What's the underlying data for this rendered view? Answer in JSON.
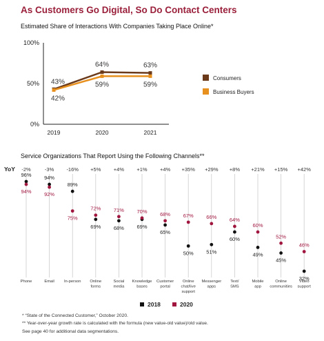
{
  "header": {
    "title": "As Customers Go Digital, So Do Contact Centers",
    "chart1_title": "Estimated Share of Interactions With Companies Taking Place Online*",
    "chart2_title": "Service Organizations That Report Using the Following Channels**"
  },
  "footnotes": {
    "note1": "* “State of the Connected Customer,” October 2020.",
    "note2": "** Year-over-year growth rate is calculated with the formula (new value-old value)/old value.",
    "note3": "See page 40 for additional data segmentations."
  },
  "chart_data": [
    {
      "type": "line",
      "title": "Estimated Share of Interactions With Companies Taking Place Online*",
      "x": [
        "2019",
        "2020",
        "2021"
      ],
      "ylim": [
        0,
        100
      ],
      "y_ticks": [
        "0%",
        "50%",
        "100%"
      ],
      "legend_position": "right",
      "series": [
        {
          "name": "Consumers",
          "values": [
            43,
            64,
            63
          ],
          "labels": [
            "43%",
            "64%",
            "63%"
          ],
          "color": "#6b3a1a"
        },
        {
          "name": "Business Buyers",
          "values": [
            42,
            59,
            59
          ],
          "labels": [
            "42%",
            "59%",
            "59%"
          ],
          "color": "#e8901e"
        }
      ]
    },
    {
      "type": "scatter",
      "title": "Service Organizations That Report Using the Following Channels**",
      "yoy_label": "YoY",
      "categories": [
        "Phone",
        "Email",
        "In-person",
        "Online forms",
        "Social media",
        "Knowledge bases",
        "Customer portal",
        "Online chat/live support",
        "Messenger apps",
        "Text/ SMS",
        "Mobile app",
        "Online communities",
        "Video support"
      ],
      "category_lines": [
        [
          "Phone"
        ],
        [
          "Email"
        ],
        [
          "In-person"
        ],
        [
          "Online",
          "forms"
        ],
        [
          "Social",
          "media"
        ],
        [
          "Knowledge",
          "bases"
        ],
        [
          "Customer",
          "portal"
        ],
        [
          "Online",
          "chat/live",
          "support"
        ],
        [
          "Messenger",
          "apps"
        ],
        [
          "Text/",
          "SMS"
        ],
        [
          "Mobile",
          "app"
        ],
        [
          "Online",
          "communities"
        ],
        [
          "Video",
          "support"
        ]
      ],
      "yoy": [
        "-2%",
        "-3%",
        "-16%",
        "+5%",
        "+4%",
        "+1%",
        "+4%",
        "+35%",
        "+29%",
        "+8%",
        "+21%",
        "+15%",
        "+42%"
      ],
      "series": [
        {
          "name": "2018",
          "values": [
            96,
            94,
            89,
            69,
            68,
            69,
            65,
            50,
            51,
            60,
            49,
            45,
            32
          ],
          "labels": [
            "96%",
            "94%",
            "89%",
            "69%",
            "68%",
            "69%",
            "65%",
            "50%",
            "51%",
            "60%",
            "49%",
            "45%",
            "32%"
          ],
          "color": "#111111"
        },
        {
          "name": "2020",
          "values": [
            94,
            92,
            75,
            72,
            71,
            70,
            68,
            67,
            66,
            64,
            60,
            52,
            46
          ],
          "labels": [
            "94%",
            "92%",
            "75%",
            "72%",
            "71%",
            "70%",
            "68%",
            "67%",
            "66%",
            "64%",
            "60%",
            "52%",
            "46%"
          ],
          "color": "#a0163f"
        }
      ]
    }
  ]
}
